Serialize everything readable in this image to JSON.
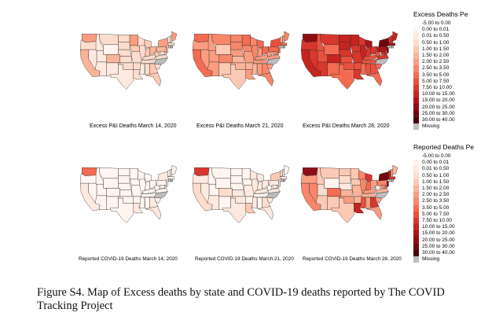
{
  "colors": {
    "neg": "#ffffff",
    "z": "#fff5f0",
    "c1": "#fde9df",
    "c2": "#fcdccc",
    "c3": "#fcc9b4",
    "c4": "#fbb39a",
    "c5": "#fb9c80",
    "c6": "#f7866a",
    "c7": "#f26b52",
    "c8": "#e8513e",
    "c9": "#d8372d",
    "c10": "#c52420",
    "c11": "#ac1519",
    "c12": "#8e0d13",
    "c13": "#70070f",
    "c14": "#4f030a",
    "missing": "#bdbdbd"
  },
  "legends": [
    {
      "title": "Excess Deaths Pe",
      "items": [
        {
          "label": "-5.00 to 0.00",
          "color": "#ffffff"
        },
        {
          "label": "0.00 to 0.01",
          "color": "#fff5f0"
        },
        {
          "label": "0.01 to 0.50",
          "color": "#fde9df"
        },
        {
          "label": "0.50 to 1.00",
          "color": "#fcdccc"
        },
        {
          "label": "1.00 to 1.50",
          "color": "#fcc9b4"
        },
        {
          "label": "1.50 to 2.00",
          "color": "#fbb39a"
        },
        {
          "label": "2.00 to 2.50",
          "color": "#fb9c80"
        },
        {
          "label": "2.50 to 3.50",
          "color": "#f7866a"
        },
        {
          "label": "3.50 to 5.00",
          "color": "#f26b52"
        },
        {
          "label": "5.00 to 7.50",
          "color": "#e8513e"
        },
        {
          "label": "7.50 to 10.00",
          "color": "#d8372d"
        },
        {
          "label": "10.00 to 15.00",
          "color": "#c52420"
        },
        {
          "label": "15.00 to 20.00",
          "color": "#ac1519"
        },
        {
          "label": "20.00 to 25.00",
          "color": "#8e0d13"
        },
        {
          "label": "25.00 to 30.00",
          "color": "#70070f"
        },
        {
          "label": "30.00 to 40.00",
          "color": "#4f030a"
        },
        {
          "label": "Missing",
          "color": "#bdbdbd"
        }
      ]
    },
    {
      "title": "Reported Deaths Pe",
      "items": [
        {
          "label": "-5.00 to 0.00",
          "color": "#ffffff"
        },
        {
          "label": "0.00 to 0.01",
          "color": "#fff5f0"
        },
        {
          "label": "0.01 to 0.50",
          "color": "#fde9df"
        },
        {
          "label": "0.50 to 1.00",
          "color": "#fcdccc"
        },
        {
          "label": "1.00 to 1.50",
          "color": "#fcc9b4"
        },
        {
          "label": "1.50 to 2.00",
          "color": "#fbb39a"
        },
        {
          "label": "2.00 to 2.50",
          "color": "#fb9c80"
        },
        {
          "label": "2.50 to 3.50",
          "color": "#f7866a"
        },
        {
          "label": "3.50 to 5.00",
          "color": "#f26b52"
        },
        {
          "label": "5.00 to 7.50",
          "color": "#e8513e"
        },
        {
          "label": "7.50 to 10.00",
          "color": "#d8372d"
        },
        {
          "label": "10.00 to 15.00",
          "color": "#c52420"
        },
        {
          "label": "15.00 to 20.00",
          "color": "#ac1519"
        },
        {
          "label": "20.00 to 25.00",
          "color": "#8e0d13"
        },
        {
          "label": "25.00 to 30.00",
          "color": "#70070f"
        },
        {
          "label": "30.00 to 40.00",
          "color": "#4f030a"
        },
        {
          "label": "Missing",
          "color": "#bdbdbd"
        }
      ]
    }
  ],
  "maps": [
    {
      "caption": "Excess P&I Deaths March 14, 2020",
      "fills": {
        "WA": "c5",
        "OR": "c2",
        "CA": "c4",
        "NV": "c1",
        "ID": "c1",
        "MT": "c2",
        "WY": "z",
        "UT": "c1",
        "AZ": "c1",
        "CO": "c4",
        "NM": "c1",
        "ND": "c2",
        "SD": "c2",
        "NE": "c2",
        "KS": "c2",
        "OK": "c2",
        "TX": "c1",
        "MN": "c5",
        "IA": "c3",
        "MO": "c2",
        "AR": "c2",
        "LA": "c2",
        "WI": "c2",
        "IL": "c2",
        "MI": "c3",
        "IN": "c3",
        "OH": "c4",
        "KY": "c2",
        "TN": "c2",
        "MS": "c1",
        "AL": "c2",
        "GA": "c3",
        "FL": "c3",
        "SC": "c2",
        "NC": "missing",
        "VA": "c2",
        "WV": "c3",
        "PA": "c4",
        "NY": "c5",
        "VT": "c1",
        "NH": "c1",
        "ME": "c5",
        "MA": "c2",
        "CT": "missing",
        "RI": "missing",
        "NJ": "c4",
        "DE": "c1",
        "MD": "c2"
      }
    },
    {
      "caption": "Excess P&I Deaths March 21, 2020",
      "fills": {
        "WA": "c7",
        "OR": "c5",
        "CA": "c7",
        "NV": "c5",
        "ID": "c5",
        "MT": "c6",
        "WY": "c3",
        "UT": "c5",
        "AZ": "c5",
        "CO": "c6",
        "NM": "c3",
        "ND": "c6",
        "SD": "c6",
        "NE": "c5",
        "KS": "c4",
        "OK": "c4",
        "TX": "c3",
        "MN": "c7",
        "IA": "c6",
        "MO": "c5",
        "AR": "c4",
        "LA": "c5",
        "WI": "c6",
        "IL": "c6",
        "MI": "c7",
        "IN": "c5",
        "OH": "c7",
        "KY": "c5",
        "TN": "c5",
        "MS": "c4",
        "AL": "c5",
        "GA": "c6",
        "FL": "c6",
        "SC": "c5",
        "NC": "missing",
        "VA": "c5",
        "WV": "c5",
        "PA": "c7",
        "NY": "c8",
        "VT": "c4",
        "NH": "c4",
        "ME": "c6",
        "MA": "c7",
        "CT": "missing",
        "RI": "missing",
        "NJ": "c7",
        "DE": "c5",
        "MD": "c6"
      }
    },
    {
      "caption": "Excess P&I Deaths March 28, 2020",
      "fills": {
        "WA": "c12",
        "OR": "c9",
        "CA": "c10",
        "NV": "c9",
        "ID": "c8",
        "MT": "c9",
        "WY": "c7",
        "UT": "c8",
        "AZ": "c9",
        "CO": "c10",
        "NM": "c7",
        "ND": "c10",
        "SD": "c10",
        "NE": "c9",
        "KS": "c8",
        "OK": "c8",
        "TX": "c7",
        "MN": "c10",
        "IA": "c9",
        "MO": "c9",
        "AR": "c8",
        "LA": "c9",
        "WI": "c9",
        "IL": "c10",
        "MI": "c11",
        "IN": "c9",
        "OH": "c9",
        "KY": "c8",
        "TN": "c8",
        "MS": "c7",
        "AL": "c8",
        "GA": "c8",
        "FL": "c7",
        "SC": "c7",
        "NC": "missing",
        "VA": "c9",
        "WV": "c8",
        "PA": "c11",
        "NY": "c13",
        "VT": "c9",
        "NH": "c9",
        "ME": "c10",
        "MA": "c11",
        "CT": "missing",
        "RI": "missing",
        "NJ": "c12",
        "DE": "c9",
        "MD": "c10"
      }
    },
    {
      "caption": "Reported COVID-19 Deaths March 14, 2020",
      "fills": {
        "WA": "c7",
        "OR": "z",
        "CA": "c1",
        "NV": "z",
        "ID": "z",
        "MT": "z",
        "WY": "z",
        "UT": "z",
        "AZ": "z",
        "CO": "z",
        "NM": "z",
        "ND": "z",
        "SD": "z",
        "NE": "z",
        "KS": "z",
        "OK": "z",
        "TX": "z",
        "MN": "z",
        "IA": "z",
        "MO": "z",
        "AR": "z",
        "LA": "c1",
        "WI": "z",
        "IL": "z",
        "MI": "z",
        "IN": "z",
        "OH": "z",
        "KY": "z",
        "TN": "z",
        "MS": "z",
        "AL": "z",
        "GA": "c1",
        "FL": "c1",
        "SC": "z",
        "NC": "missing",
        "VA": "z",
        "WV": "z",
        "PA": "z",
        "NY": "c1",
        "VT": "z",
        "NH": "z",
        "ME": "z",
        "MA": "z",
        "CT": "missing",
        "RI": "missing",
        "NJ": "c1",
        "DE": "z",
        "MD": "z"
      }
    },
    {
      "caption": "Reported COVID-19 Deaths March 21, 2020",
      "fills": {
        "WA": "c9",
        "OR": "c1",
        "CA": "c2",
        "NV": "c1",
        "ID": "z",
        "MT": "z",
        "WY": "z",
        "UT": "z",
        "AZ": "c1",
        "CO": "c2",
        "NM": "z",
        "ND": "z",
        "SD": "z",
        "NE": "z",
        "KS": "c1",
        "OK": "c1",
        "TX": "c1",
        "MN": "z",
        "IA": "z",
        "MO": "c1",
        "AR": "z",
        "LA": "c3",
        "WI": "c1",
        "IL": "c1",
        "MI": "c1",
        "IN": "c1",
        "OH": "c1",
        "KY": "c1",
        "TN": "z",
        "MS": "c1",
        "AL": "z",
        "GA": "c2",
        "FL": "c1",
        "SC": "c1",
        "NC": "missing",
        "VA": "c1",
        "WV": "z",
        "PA": "c1",
        "NY": "c3",
        "VT": "c2",
        "NH": "z",
        "ME": "z",
        "MA": "c1",
        "CT": "missing",
        "RI": "missing",
        "NJ": "c2",
        "DE": "z",
        "MD": "c1"
      }
    },
    {
      "caption": "Reported COVID-19 Deaths March 28, 2020",
      "fills": {
        "WA": "c12",
        "OR": "c5",
        "CA": "c6",
        "NV": "c6",
        "ID": "c3",
        "MT": "c3",
        "WY": "z",
        "UT": "c2",
        "AZ": "c3",
        "CO": "c7",
        "NM": "c3",
        "ND": "c3",
        "SD": "c2",
        "NE": "c1",
        "KS": "c4",
        "OK": "c5",
        "TX": "c3",
        "MN": "c3",
        "IA": "c3",
        "MO": "c4",
        "AR": "c4",
        "LA": "c10",
        "WI": "c6",
        "IL": "c6",
        "MI": "c9",
        "IN": "c7",
        "OH": "c5",
        "KY": "c5",
        "TN": "c4",
        "MS": "c8",
        "AL": "c5",
        "GA": "c9",
        "FL": "c5",
        "SC": "c5",
        "NC": "missing",
        "VA": "c4",
        "WV": "c1",
        "PA": "c6",
        "NY": "c13",
        "VT": "c10",
        "NH": "c3",
        "ME": "c4",
        "MA": "c9",
        "CT": "missing",
        "RI": "missing",
        "NJ": "c12",
        "DE": "c7",
        "MD": "c6"
      }
    }
  ],
  "figure_caption": "Figure S4. Map of Excess deaths by state and COVID-19 deaths reported by The COVID Tracking Project"
}
